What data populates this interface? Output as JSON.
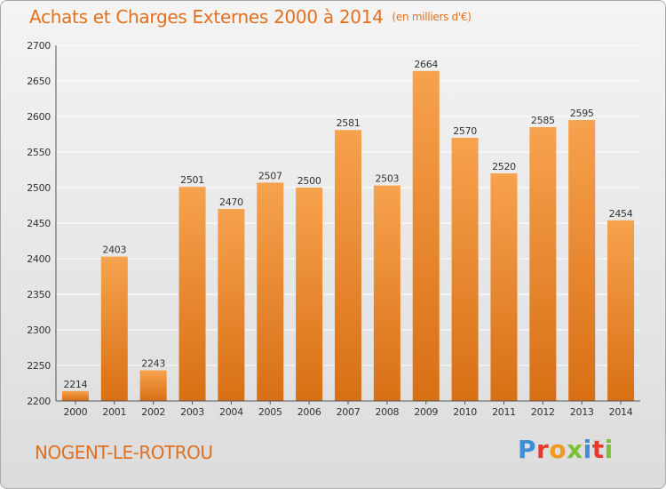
{
  "header": {
    "title": "Achats et Charges Externes 2000 à 2014",
    "unit": "(en milliers d'€)"
  },
  "footer": {
    "city": "NOGENT-LE-ROTROU",
    "logo": "Proxiti",
    "logo_colors": [
      "#3a8fd6",
      "#e8392e",
      "#f29a1f",
      "#7bbf3a",
      "#3a8fd6",
      "#e8392e",
      "#7bbf3a"
    ]
  },
  "colors": {
    "accent": "#e2701e",
    "bar_top": "#f7a24e",
    "bar_bottom": "#d86f14",
    "grid": "#ffffff",
    "text": "#333333"
  },
  "chart_data": {
    "type": "bar",
    "categories": [
      "2000",
      "2001",
      "2002",
      "2003",
      "2004",
      "2005",
      "2006",
      "2007",
      "2008",
      "2009",
      "2010",
      "2011",
      "2012",
      "2013",
      "2014"
    ],
    "values": [
      2214,
      2403,
      2243,
      2501,
      2470,
      2507,
      2500,
      2581,
      2503,
      2664,
      2570,
      2520,
      2585,
      2595,
      2454
    ],
    "title": "Achats et Charges Externes 2000 à 2014",
    "ylim": [
      2200,
      2700
    ],
    "yticks": [
      2200,
      2250,
      2300,
      2350,
      2400,
      2450,
      2500,
      2550,
      2600,
      2650,
      2700
    ],
    "grid": true,
    "data_labels": true
  }
}
